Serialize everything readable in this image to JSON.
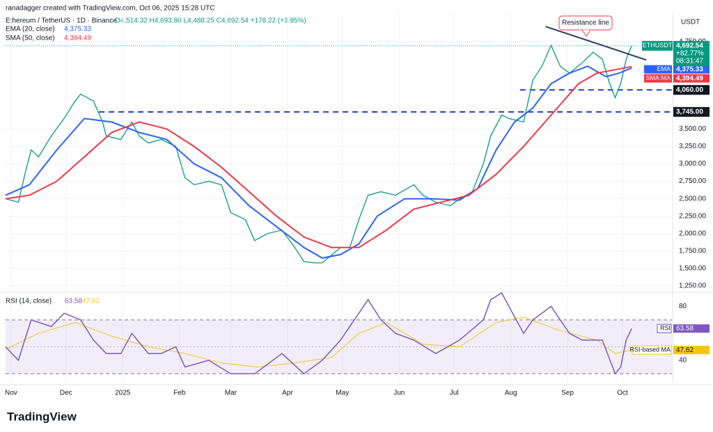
{
  "header": {
    "credit": "ranadagger created with TradingView.com, Oct 06, 2025 15:28 UTC",
    "symbol": "Ethereum / TetherUS · 1D · Binance",
    "ohlc": "O4,514.32 H4,693.80 L4,488.25 C4,692.54 +178.22 (+3.95%)"
  },
  "footer": {
    "brand": "TradingView"
  },
  "chart_data": [
    {
      "type": "line",
      "currency": "USDT",
      "xlim": [
        -3,
        361
      ],
      "xticks": [
        {
          "value": 0,
          "label": "Nov"
        },
        {
          "value": 30,
          "label": "Dec"
        },
        {
          "value": 61,
          "label": "2025"
        },
        {
          "value": 92,
          "label": "Feb"
        },
        {
          "value": 120,
          "label": "Mar"
        },
        {
          "value": 151,
          "label": "Apr"
        },
        {
          "value": 181,
          "label": "May"
        },
        {
          "value": 212,
          "label": "Jun"
        },
        {
          "value": 242,
          "label": "Jul"
        },
        {
          "value": 273,
          "label": "Aug"
        },
        {
          "value": 304,
          "label": "Sep"
        },
        {
          "value": 334,
          "label": "Oct"
        }
      ],
      "ylim": [
        1160,
        5150
      ],
      "yticks": [
        {
          "value": 1250,
          "label": "1,250.00"
        },
        {
          "value": 1500,
          "label": "1,500.00"
        },
        {
          "value": 1750,
          "label": "1,750.00"
        },
        {
          "value": 2000,
          "label": "2,000.00"
        },
        {
          "value": 2250,
          "label": "2,250.00"
        },
        {
          "value": 2500,
          "label": "2,500.00"
        },
        {
          "value": 2750,
          "label": "2,750.00"
        },
        {
          "value": 3000,
          "label": "3,000.00"
        },
        {
          "value": 3250,
          "label": "3,250.00"
        },
        {
          "value": 3500,
          "label": "3,500.00"
        },
        {
          "value": 4750,
          "label": "4,750.00"
        }
      ],
      "grid": true,
      "series": [
        {
          "name": "ETHUSDT",
          "color": "#089981",
          "value_label": "4,692.54",
          "change": "+82.77%",
          "countdown": "08:31:47",
          "x": [
            -3,
            4,
            8,
            11,
            15,
            22,
            29,
            35,
            38,
            45,
            50,
            52,
            60,
            66,
            70,
            75,
            82,
            90,
            95,
            100,
            108,
            115,
            120,
            128,
            133,
            140,
            148,
            155,
            160,
            165,
            170,
            180,
            185,
            190,
            195,
            202,
            210,
            220,
            225,
            232,
            240,
            245,
            252,
            258,
            262,
            268,
            272,
            280,
            285,
            290,
            295,
            300,
            305,
            312,
            318,
            323,
            327,
            330,
            333,
            336,
            339
          ],
          "values": [
            2500,
            2450,
            2900,
            3200,
            3100,
            3400,
            3650,
            3900,
            4000,
            3900,
            3600,
            3400,
            3350,
            3600,
            3400,
            3300,
            3350,
            3250,
            2800,
            2700,
            2750,
            2700,
            2300,
            2200,
            1900,
            2000,
            2050,
            1800,
            1600,
            1580,
            1580,
            1800,
            1800,
            2200,
            2550,
            2600,
            2550,
            2700,
            2550,
            2450,
            2400,
            2500,
            2600,
            3000,
            3400,
            3700,
            3650,
            3600,
            4200,
            4400,
            4700,
            4400,
            4300,
            4450,
            4600,
            4500,
            4150,
            3950,
            4150,
            4500,
            4692.54
          ]
        },
        {
          "name": "EMA (20, close)",
          "tag": "EMA",
          "color": "#2962ff",
          "value_label": "4,375.33",
          "x": [
            -3,
            10,
            25,
            40,
            55,
            70,
            85,
            100,
            115,
            130,
            145,
            160,
            170,
            180,
            190,
            200,
            215,
            230,
            245,
            255,
            265,
            275,
            285,
            295,
            305,
            315,
            325,
            332,
            339
          ],
          "values": [
            2550,
            2700,
            3200,
            3650,
            3600,
            3450,
            3350,
            3000,
            2800,
            2400,
            2100,
            1800,
            1650,
            1700,
            1850,
            2250,
            2500,
            2500,
            2480,
            2650,
            3200,
            3600,
            3800,
            4150,
            4300,
            4400,
            4250,
            4300,
            4375.33
          ]
        },
        {
          "name": "SMA (50, close)",
          "tag": "SMA:MA",
          "color": "#f23645",
          "value_label": "4,394.49",
          "x": [
            -3,
            10,
            25,
            40,
            55,
            70,
            85,
            100,
            115,
            130,
            145,
            160,
            175,
            190,
            205,
            220,
            235,
            250,
            265,
            280,
            295,
            310,
            320,
            330,
            339
          ],
          "values": [
            2500,
            2550,
            2750,
            3100,
            3450,
            3600,
            3500,
            3250,
            2950,
            2600,
            2250,
            1950,
            1800,
            1800,
            2050,
            2350,
            2450,
            2550,
            2850,
            3250,
            3700,
            4150,
            4300,
            4350,
            4394.49
          ]
        }
      ],
      "levels": [
        {
          "value": 4060,
          "label": "4,060.00",
          "x_start": 278
        },
        {
          "value": 3745,
          "label": "3,745.00",
          "x_start": 48
        }
      ],
      "annotation": {
        "text": "Resistance line",
        "x": [
          292,
          347
        ],
        "y": [
          4969,
          4490
        ]
      }
    },
    {
      "type": "line",
      "title": "RSI (14, close)",
      "ylim": [
        26,
        88
      ],
      "yticks": [
        80,
        40
      ],
      "bands": [
        70,
        30
      ],
      "midline": 50,
      "series": [
        {
          "name": "RSI",
          "color": "#7e57c2",
          "value_label": "63.58",
          "x": [
            -3,
            4,
            11,
            22,
            29,
            38,
            45,
            52,
            60,
            66,
            75,
            82,
            90,
            95,
            108,
            120,
            133,
            148,
            160,
            170,
            180,
            190,
            195,
            202,
            210,
            220,
            232,
            245,
            258,
            262,
            268,
            272,
            280,
            285,
            295,
            305,
            312,
            318,
            323,
            330,
            333,
            336,
            339
          ],
          "values": [
            50,
            40,
            70,
            65,
            75,
            70,
            55,
            45,
            45,
            60,
            45,
            45,
            50,
            35,
            40,
            30,
            30,
            45,
            30,
            40,
            55,
            75,
            85,
            70,
            60,
            55,
            45,
            55,
            70,
            85,
            90,
            80,
            60,
            70,
            80,
            60,
            55,
            55,
            55,
            30,
            35,
            55,
            63.58
          ]
        },
        {
          "name": "RSI-based MA",
          "color": "#f5c518",
          "value_label": "47.62",
          "x": [
            -3,
            15,
            35,
            55,
            75,
            95,
            115,
            135,
            155,
            175,
            190,
            205,
            225,
            245,
            265,
            280,
            300,
            320,
            330,
            339
          ],
          "values": [
            48,
            60,
            68,
            58,
            50,
            45,
            38,
            35,
            38,
            42,
            60,
            68,
            52,
            50,
            68,
            72,
            62,
            55,
            45,
            47.62
          ]
        }
      ]
    }
  ]
}
